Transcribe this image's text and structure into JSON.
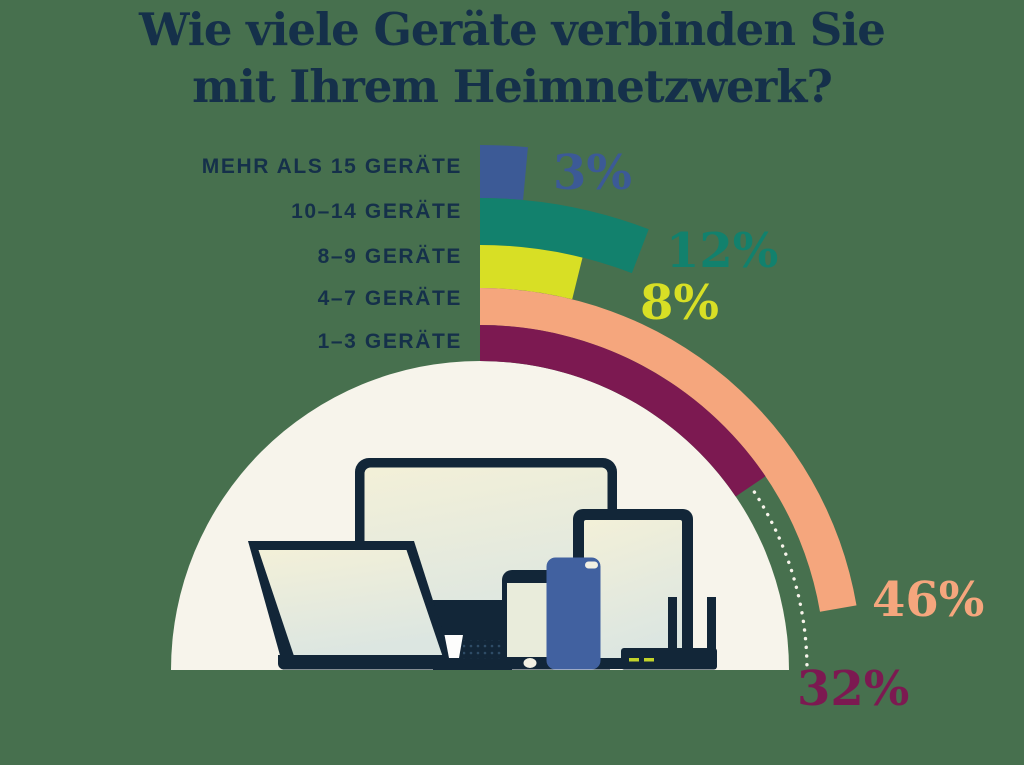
{
  "page": {
    "background_color": "#47704e"
  },
  "title": {
    "line1": "Wie viele Geräte verbinden Sie",
    "line2": "mit Ihrem Heimnetzwerk?"
  },
  "chart_data": {
    "type": "radial-bar",
    "title": "Wie viele Geräte verbinden Sie mit Ihrem Heimnetzwerk?",
    "unit": "%",
    "angle_scale_deg_per_percent": 1.745,
    "categories": [
      "MEHR ALS 15 GERÄTE",
      "10–14 GERÄTE",
      "8–9 GERÄTE",
      "4–7 GERÄTE",
      "1–3 GERÄTE"
    ],
    "values": [
      3,
      12,
      8,
      46,
      32
    ],
    "value_labels": [
      "3%",
      "12%",
      "8%",
      "46%",
      "32%"
    ],
    "colors": [
      "#3c5a96",
      "#12816d",
      "#d8df25",
      "#f5a67d",
      "#7c1951"
    ],
    "legend_position": "left",
    "notes": "Half-gauge: all segments start at 12 o'clock and sweep clockwise above an ivory semicircle; the 32% segment is linked to its label by a dotted leader arc."
  },
  "illustration": {
    "name": "home-network-devices",
    "backdrop_color": "#f7f4eb",
    "devices": [
      "monitor",
      "laptop",
      "coffee-cup",
      "smartphone",
      "smartphone-blue",
      "tablet",
      "wifi-router"
    ],
    "colors": {
      "device_dark": "#122638",
      "screen_top": "#f3f0d8",
      "screen_bottom": "#dce6e1",
      "phone_screen": "#e9ecdb",
      "phone_blue": "#4161a0",
      "accent_ivory": "#f2f0e3",
      "router_led": "#c3d32a",
      "cup": "#fdfdfc",
      "halftone_dot": "#2e4c66"
    }
  }
}
